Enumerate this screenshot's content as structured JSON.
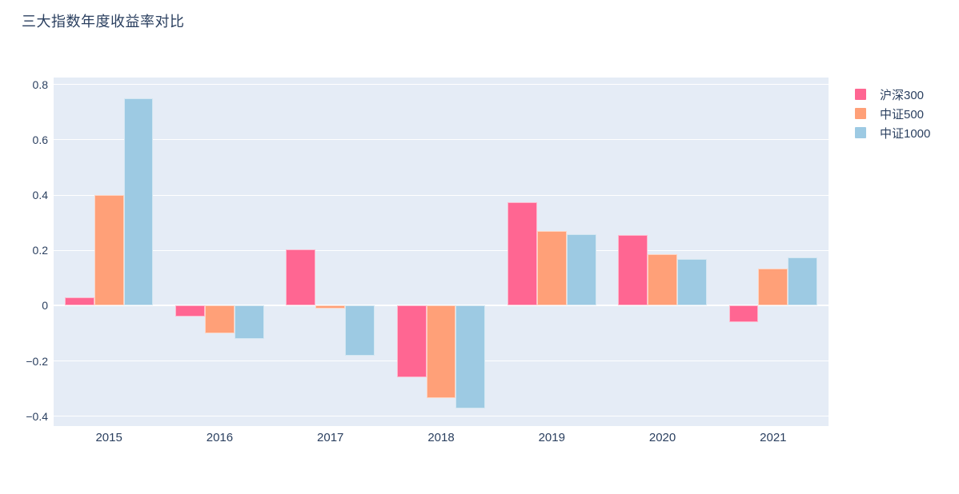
{
  "page": {
    "background_color": "#ffffff",
    "text_color": "#2a3f5f"
  },
  "chart_data": {
    "type": "bar",
    "title": "三大指数年度收益率对比",
    "categories": [
      "2015",
      "2016",
      "2017",
      "2018",
      "2019",
      "2020",
      "2021"
    ],
    "series": [
      {
        "name": "沪深300",
        "color": "#FF6692",
        "values": [
          0.03,
          -0.04,
          0.205,
          -0.26,
          0.375,
          0.255,
          -0.06
        ]
      },
      {
        "name": "中证500",
        "color": "#FFA078",
        "values": [
          0.4,
          -0.1,
          -0.01,
          -0.335,
          0.27,
          0.185,
          0.135
        ]
      },
      {
        "name": "中证1000",
        "color": "#9DCAE3",
        "values": [
          0.75,
          -0.12,
          -0.18,
          -0.37,
          0.26,
          0.17,
          0.175
        ]
      }
    ],
    "yticks": [
      0.8,
      0.6,
      0.4,
      0.2,
      0,
      -0.2,
      -0.4
    ],
    "ytick_labels": [
      "0.8",
      "0.6",
      "0.4",
      "0.2",
      "0",
      "−0.2",
      "−0.4"
    ],
    "ylim": [
      -0.435,
      0.825
    ],
    "xlabel": "",
    "ylabel": "",
    "grid": true,
    "legend_position": "right",
    "plot_bgcolor": "#e5ecf6",
    "gridline_color": "#ffffff",
    "bargap": 0.2
  }
}
